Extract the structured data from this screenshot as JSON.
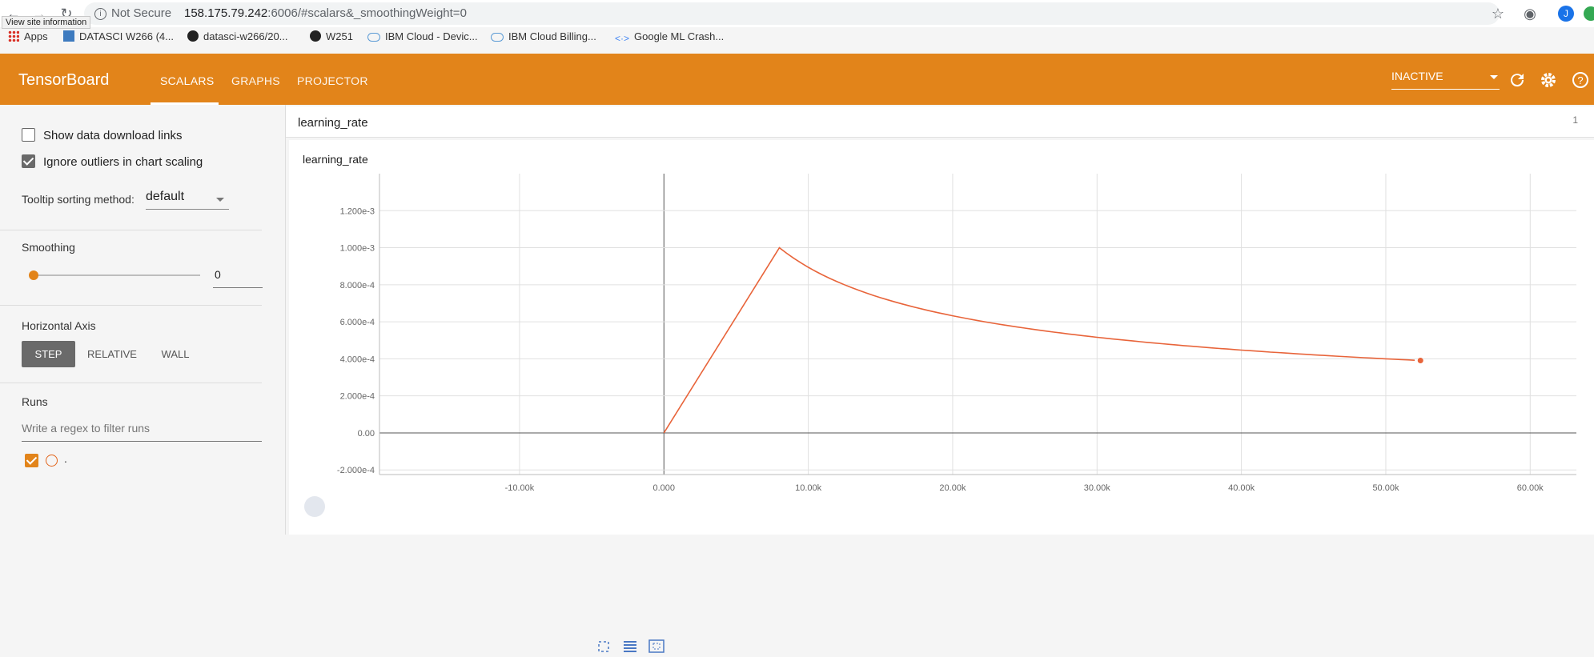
{
  "browser": {
    "tooltip": "View site information",
    "security_label": "Not Secure",
    "url_host": "158.175.79.242",
    "url_rest": ":6006/#scalars&_smoothingWeight=0",
    "bookmarks": [
      "Apps",
      "DATASCI W266 (4...",
      "datasci-w266/20...",
      "W251",
      "IBM Cloud - Devic...",
      "IBM Cloud Billing...",
      "Google ML Crash..."
    ],
    "avatar_letter": "J"
  },
  "header": {
    "brand": "TensorBoard",
    "tabs": [
      "SCALARS",
      "GRAPHS",
      "PROJECTOR"
    ],
    "active_tab": "SCALARS",
    "run_selector": "INACTIVE",
    "accent_color": "#e2841a"
  },
  "sidebar": {
    "show_download_links": {
      "label": "Show data download links",
      "checked": false
    },
    "ignore_outliers": {
      "label": "Ignore outliers in chart scaling",
      "checked": true
    },
    "tooltip_sorting": {
      "label": "Tooltip sorting method:",
      "value": "default"
    },
    "smoothing": {
      "label": "Smoothing",
      "value": "0"
    },
    "horizontal_axis": {
      "label": "Horizontal Axis",
      "options": [
        "STEP",
        "RELATIVE",
        "WALL"
      ],
      "selected": "STEP"
    },
    "runs": {
      "label": "Runs",
      "filter_placeholder": "Write a regex to filter runs",
      "items": [
        {
          "name": ".",
          "checked": true
        }
      ]
    }
  },
  "section": {
    "title": "learning_rate",
    "count": "1"
  },
  "card": {
    "title": "learning_rate"
  },
  "chart_data": {
    "type": "line",
    "title": "learning_rate",
    "xlabel": "",
    "ylabel": "",
    "xlim": [
      -16000,
      66000
    ],
    "ylim": [
      -0.00022,
      0.0014
    ],
    "x_ticks": [
      "-10.00k",
      "0.000",
      "10.00k",
      "20.00k",
      "30.00k",
      "40.00k",
      "50.00k",
      "60.00k"
    ],
    "y_ticks": [
      "1.200e-3",
      "1.000e-3",
      "8.000e-4",
      "6.000e-4",
      "4.000e-4",
      "2.000e-4",
      "0.00",
      "-2.000e-4"
    ],
    "grid": true,
    "series": [
      {
        "color": "#e8643a",
        "x": [
          0,
          2000,
          4000,
          6000,
          8000,
          10000,
          12000,
          14000,
          16000,
          18000,
          20000,
          25000,
          30000,
          35000,
          40000,
          45000,
          50000,
          52400
        ],
        "y": [
          0,
          0.00025,
          0.0005,
          0.00075,
          0.001,
          0.000894,
          0.000816,
          0.000756,
          0.000707,
          0.000667,
          0.000632,
          0.000566,
          0.000516,
          0.000478,
          0.000447,
          0.000422,
          0.0004,
          0.000391
        ]
      }
    ]
  }
}
